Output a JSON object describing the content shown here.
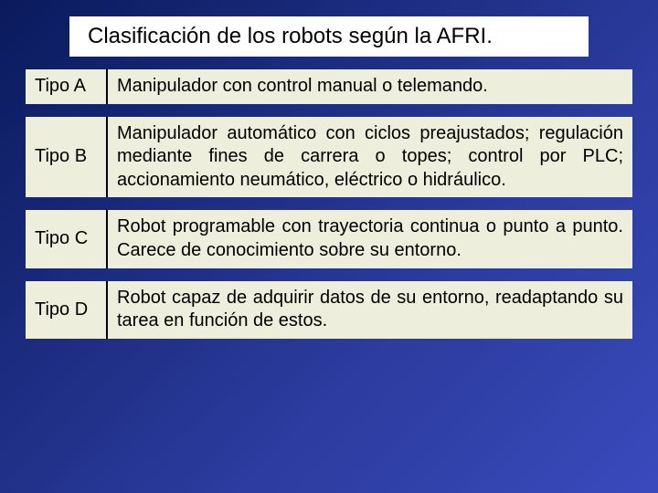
{
  "title": "Clasificación de los robots según la AFRI.",
  "table": {
    "rows": [
      {
        "type": "Tipo A",
        "desc": "Manipulador con control manual o telemando."
      },
      {
        "type": "Tipo B",
        "desc": "Manipulador automático con ciclos preajustados; regulación mediante fines de carrera o topes; control por PLC; accionamiento neumático, eléctrico o hidráulico."
      },
      {
        "type": "Tipo C",
        "desc": "Robot programable con trayectoria continua o punto a punto. Carece de conocimiento sobre su entorno."
      },
      {
        "type": "Tipo D",
        "desc": "Robot capaz de adquirir datos de su entorno, readaptando su tarea en función de estos."
      }
    ]
  },
  "colors": {
    "row_bg": "#eeeedd",
    "title_bg": "#ffffff",
    "text": "#000000"
  }
}
